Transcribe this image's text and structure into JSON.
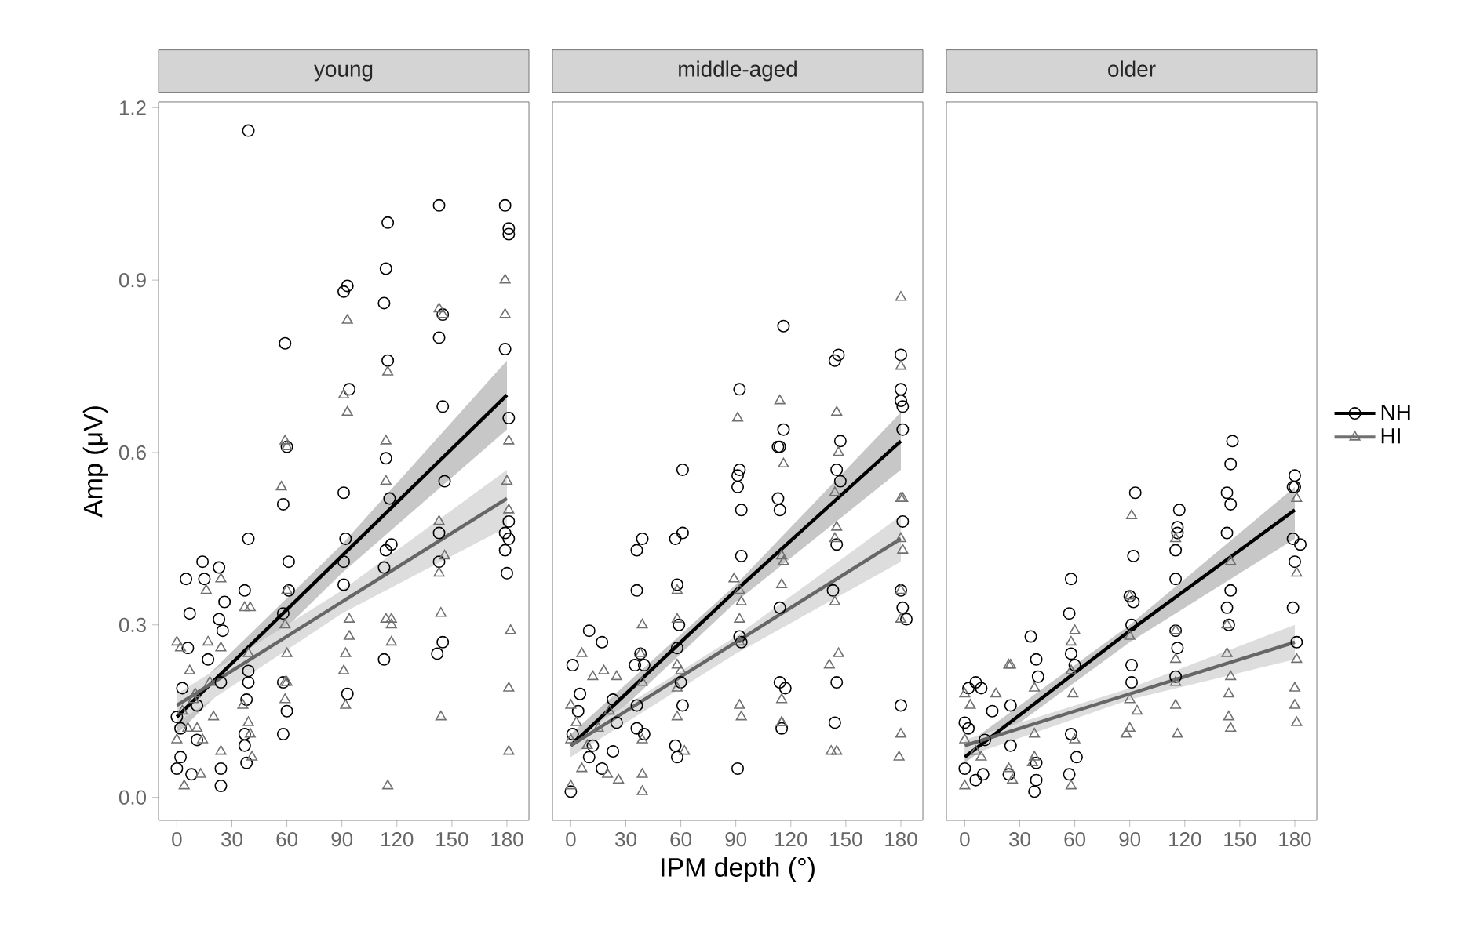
{
  "chart_data": [
    {
      "type": "scatter",
      "title": "young",
      "ylabel": "Amp (μV)",
      "xlim": [
        -10,
        192
      ],
      "ylim": [
        -0.04,
        1.21
      ],
      "xticks": [
        0,
        30,
        60,
        90,
        120,
        150,
        180
      ],
      "yticks": [
        {
          "value": 0,
          "label": "0.0"
        },
        {
          "value": 0.3,
          "label": "0.3"
        },
        {
          "value": 0.6,
          "label": "0.6"
        },
        {
          "value": 0.9,
          "label": "0.9"
        },
        {
          "value": 1.2,
          "label": "1.2"
        }
      ],
      "grid": false,
      "series": [
        {
          "marker": "circle",
          "color": "#000000",
          "x": [
            39,
            39,
            37,
            39,
            39,
            38,
            37,
            37,
            38,
            59,
            60,
            58,
            61,
            61,
            58,
            58,
            60,
            58,
            93,
            91,
            94,
            91,
            92,
            91,
            91,
            93,
            115,
            114,
            113,
            115,
            114,
            116,
            114,
            117,
            113,
            113,
            143,
            145,
            143,
            145,
            146,
            143,
            143,
            145,
            142,
            179,
            181,
            181,
            179,
            181,
            181,
            179,
            181,
            179,
            180,
            5,
            14,
            15,
            23,
            26,
            7,
            6,
            23,
            25,
            24,
            17,
            0,
            3,
            2,
            0,
            8,
            24,
            24,
            11,
            2,
            11
          ],
          "values": [
            1.16,
            0.45,
            0.36,
            0.22,
            0.2,
            0.17,
            0.11,
            0.09,
            0.06,
            0.79,
            0.61,
            0.51,
            0.41,
            0.36,
            0.32,
            0.2,
            0.15,
            0.11,
            0.89,
            0.88,
            0.71,
            0.53,
            0.45,
            0.41,
            0.37,
            0.18,
            1.0,
            0.92,
            0.86,
            0.76,
            0.59,
            0.52,
            0.43,
            0.44,
            0.4,
            0.24,
            1.03,
            0.84,
            0.8,
            0.68,
            0.55,
            0.46,
            0.41,
            0.27,
            0.25,
            1.03,
            0.99,
            0.98,
            0.78,
            0.66,
            0.48,
            0.46,
            0.45,
            0.43,
            0.39,
            0.38,
            0.41,
            0.38,
            0.4,
            0.34,
            0.32,
            0.26,
            0.31,
            0.29,
            0.2,
            0.24,
            0.14,
            0.19,
            0.07,
            0.05,
            0.04,
            0.05,
            0.02,
            0.1,
            0.12,
            0.16
          ]
        },
        {
          "marker": "triangle",
          "color": "#707070",
          "x": [
            0,
            2,
            16,
            24,
            17,
            24,
            7,
            4,
            13,
            0,
            11,
            24,
            9,
            3,
            6,
            10,
            14,
            18,
            20,
            37,
            40,
            39,
            36,
            39,
            40,
            41,
            57,
            59,
            60,
            60,
            59,
            60,
            59,
            60,
            59,
            93,
            91,
            93,
            94,
            94,
            92,
            91,
            92,
            115,
            114,
            114,
            114,
            117,
            117,
            117,
            115,
            143,
            145,
            143,
            146,
            143,
            144,
            144,
            179,
            179,
            181,
            180,
            181,
            182,
            181,
            181
          ],
          "values": [
            0.27,
            0.26,
            0.36,
            0.38,
            0.27,
            0.26,
            0.22,
            0.02,
            0.04,
            0.1,
            0.12,
            0.08,
            0.17,
            0.15,
            0.12,
            0.18,
            0.1,
            0.2,
            0.14,
            0.33,
            0.33,
            0.25,
            0.16,
            0.13,
            0.11,
            0.07,
            0.54,
            0.62,
            0.61,
            0.36,
            0.3,
            0.25,
            0.2,
            0.2,
            0.17,
            0.83,
            0.7,
            0.67,
            0.31,
            0.28,
            0.25,
            0.22,
            0.16,
            0.74,
            0.62,
            0.55,
            0.31,
            0.31,
            0.3,
            0.27,
            0.02,
            0.85,
            0.84,
            0.48,
            0.42,
            0.39,
            0.32,
            0.14,
            0.9,
            0.84,
            0.62,
            0.55,
            0.5,
            0.29,
            0.19,
            0.08
          ]
        },
        {
          "type": "line",
          "color": "#000000",
          "x": [
            0,
            90,
            180
          ],
          "values": [
            0.14,
            0.42,
            0.7
          ],
          "lower": [
            0.11,
            0.39,
            0.64
          ],
          "upper": [
            0.16,
            0.44,
            0.76
          ]
        },
        {
          "type": "line",
          "color": "#666666",
          "x": [
            0,
            90,
            180
          ],
          "values": [
            0.16,
            0.34,
            0.52
          ],
          "lower": [
            0.13,
            0.32,
            0.47
          ],
          "upper": [
            0.18,
            0.36,
            0.57
          ]
        }
      ]
    },
    {
      "type": "scatter",
      "title": "middle-aged",
      "xlabel": "IPM depth (°)",
      "xlim": [
        -10,
        192
      ],
      "ylim": [
        -0.04,
        1.21
      ],
      "xticks": [
        0,
        30,
        60,
        90,
        120,
        150,
        180
      ],
      "tick_labels": "x",
      "grid": false,
      "series": [
        {
          "marker": "circle",
          "color": "#000000",
          "x": [
            1,
            10,
            17,
            4,
            23,
            1,
            10,
            0,
            17,
            23,
            5,
            12,
            25,
            39,
            36,
            36,
            38,
            40,
            35,
            36,
            36,
            40,
            61,
            61,
            57,
            58,
            59,
            58,
            60,
            61,
            57,
            58,
            92,
            92,
            91,
            91,
            93,
            93,
            92,
            93,
            91,
            116,
            116,
            113,
            114,
            113,
            114,
            114,
            114,
            117,
            115,
            146,
            144,
            147,
            145,
            147,
            145,
            143,
            145,
            144,
            180,
            180,
            180,
            181,
            181,
            181,
            180,
            181,
            183,
            180
          ],
          "values": [
            0.23,
            0.29,
            0.27,
            0.15,
            0.17,
            0.11,
            0.07,
            0.01,
            0.05,
            0.08,
            0.18,
            0.09,
            0.13,
            0.45,
            0.43,
            0.36,
            0.25,
            0.23,
            0.23,
            0.16,
            0.12,
            0.11,
            0.57,
            0.46,
            0.45,
            0.37,
            0.3,
            0.26,
            0.2,
            0.16,
            0.09,
            0.07,
            0.71,
            0.57,
            0.56,
            0.54,
            0.5,
            0.42,
            0.28,
            0.27,
            0.05,
            0.82,
            0.64,
            0.61,
            0.61,
            0.52,
            0.5,
            0.33,
            0.2,
            0.19,
            0.12,
            0.77,
            0.76,
            0.62,
            0.57,
            0.55,
            0.44,
            0.36,
            0.2,
            0.13,
            0.77,
            0.71,
            0.69,
            0.68,
            0.64,
            0.48,
            0.36,
            0.33,
            0.31,
            0.16
          ]
        },
        {
          "marker": "triangle",
          "color": "#707070",
          "x": [
            6,
            12,
            18,
            25,
            0,
            0,
            26,
            0,
            6,
            20,
            3,
            9,
            15,
            21,
            39,
            38,
            39,
            39,
            39,
            39,
            58,
            58,
            58,
            60,
            58,
            58,
            62,
            91,
            89,
            92,
            93,
            92,
            92,
            92,
            93,
            114,
            116,
            115,
            116,
            115,
            115,
            115,
            115,
            145,
            146,
            144,
            145,
            144,
            144,
            146,
            141,
            142,
            145,
            180,
            180,
            180,
            181,
            180,
            181,
            180,
            180,
            180,
            179
          ],
          "values": [
            0.25,
            0.21,
            0.22,
            0.21,
            0.16,
            0.1,
            0.03,
            0.02,
            0.05,
            0.04,
            0.13,
            0.09,
            0.12,
            0.15,
            0.3,
            0.25,
            0.2,
            0.1,
            0.04,
            0.01,
            0.36,
            0.31,
            0.23,
            0.22,
            0.19,
            0.14,
            0.08,
            0.66,
            0.38,
            0.36,
            0.34,
            0.31,
            0.27,
            0.16,
            0.14,
            0.69,
            0.58,
            0.42,
            0.41,
            0.37,
            0.17,
            0.13,
            0.13,
            0.67,
            0.6,
            0.53,
            0.47,
            0.45,
            0.34,
            0.25,
            0.23,
            0.08,
            0.08,
            0.87,
            0.75,
            0.52,
            0.52,
            0.45,
            0.43,
            0.36,
            0.31,
            0.11,
            0.07
          ]
        },
        {
          "type": "line",
          "color": "#000000",
          "x": [
            0,
            90,
            180
          ],
          "values": [
            0.09,
            0.36,
            0.62
          ],
          "lower": [
            0.07,
            0.34,
            0.57
          ],
          "upper": [
            0.11,
            0.37,
            0.67
          ]
        },
        {
          "type": "line",
          "color": "#666666",
          "x": [
            0,
            90,
            180
          ],
          "values": [
            0.09,
            0.27,
            0.45
          ],
          "lower": [
            0.07,
            0.25,
            0.41
          ],
          "upper": [
            0.1,
            0.28,
            0.49
          ]
        }
      ]
    },
    {
      "type": "scatter",
      "title": "older",
      "xlim": [
        -10,
        192
      ],
      "ylim": [
        -0.04,
        1.21
      ],
      "xticks": [
        0,
        30,
        60,
        90,
        120,
        150,
        180
      ],
      "tick_labels": "x",
      "grid": false,
      "legend": "right",
      "series": [
        {
          "name": "NH",
          "marker": "circle",
          "color": "#000000",
          "x": [
            6,
            2,
            9,
            0,
            15,
            11,
            0,
            6,
            10,
            24,
            25,
            25,
            2,
            36,
            39,
            40,
            39,
            39,
            38,
            58,
            57,
            58,
            60,
            58,
            61,
            57,
            93,
            92,
            90,
            92,
            91,
            91,
            91,
            117,
            116,
            116,
            115,
            115,
            115,
            116,
            115,
            146,
            145,
            143,
            145,
            143,
            145,
            143,
            144,
            180,
            179,
            180,
            179,
            183,
            180,
            179,
            181
          ],
          "values": [
            0.2,
            0.19,
            0.19,
            0.13,
            0.15,
            0.1,
            0.05,
            0.03,
            0.04,
            0.04,
            0.16,
            0.09,
            0.12,
            0.28,
            0.24,
            0.21,
            0.06,
            0.03,
            0.01,
            0.38,
            0.32,
            0.25,
            0.23,
            0.11,
            0.07,
            0.04,
            0.53,
            0.42,
            0.35,
            0.34,
            0.3,
            0.23,
            0.2,
            0.5,
            0.47,
            0.46,
            0.43,
            0.38,
            0.29,
            0.26,
            0.21,
            0.62,
            0.58,
            0.53,
            0.51,
            0.46,
            0.36,
            0.33,
            0.3,
            0.56,
            0.54,
            0.54,
            0.45,
            0.44,
            0.41,
            0.33,
            0.27
          ]
        },
        {
          "name": "HI",
          "marker": "triangle",
          "color": "#707070",
          "x": [
            0,
            3,
            17,
            24,
            25,
            0,
            0,
            9,
            24,
            26,
            6,
            38,
            38,
            38,
            37,
            60,
            58,
            58,
            59,
            60,
            58,
            91,
            90,
            90,
            90,
            94,
            90,
            88,
            115,
            115,
            115,
            115,
            115,
            116,
            145,
            143,
            143,
            145,
            144,
            144,
            145,
            181,
            181,
            181,
            180,
            180,
            181
          ],
          "values": [
            0.18,
            0.16,
            0.18,
            0.23,
            0.23,
            0.02,
            0.1,
            0.07,
            0.05,
            0.03,
            0.08,
            0.19,
            0.11,
            0.07,
            0.06,
            0.29,
            0.27,
            0.22,
            0.18,
            0.1,
            0.02,
            0.49,
            0.35,
            0.28,
            0.17,
            0.15,
            0.12,
            0.11,
            0.45,
            0.29,
            0.24,
            0.2,
            0.16,
            0.11,
            0.41,
            0.3,
            0.25,
            0.21,
            0.18,
            0.14,
            0.12,
            0.52,
            0.39,
            0.24,
            0.19,
            0.16,
            0.13
          ]
        },
        {
          "type": "line",
          "color": "#000000",
          "x": [
            0,
            90,
            180
          ],
          "values": [
            0.07,
            0.29,
            0.5
          ],
          "lower": [
            0.06,
            0.27,
            0.45
          ],
          "upper": [
            0.09,
            0.3,
            0.54
          ]
        },
        {
          "type": "line",
          "color": "#666666",
          "x": [
            0,
            90,
            180
          ],
          "values": [
            0.09,
            0.18,
            0.27
          ],
          "lower": [
            0.07,
            0.17,
            0.24
          ],
          "upper": [
            0.1,
            0.19,
            0.3
          ]
        }
      ]
    }
  ]
}
